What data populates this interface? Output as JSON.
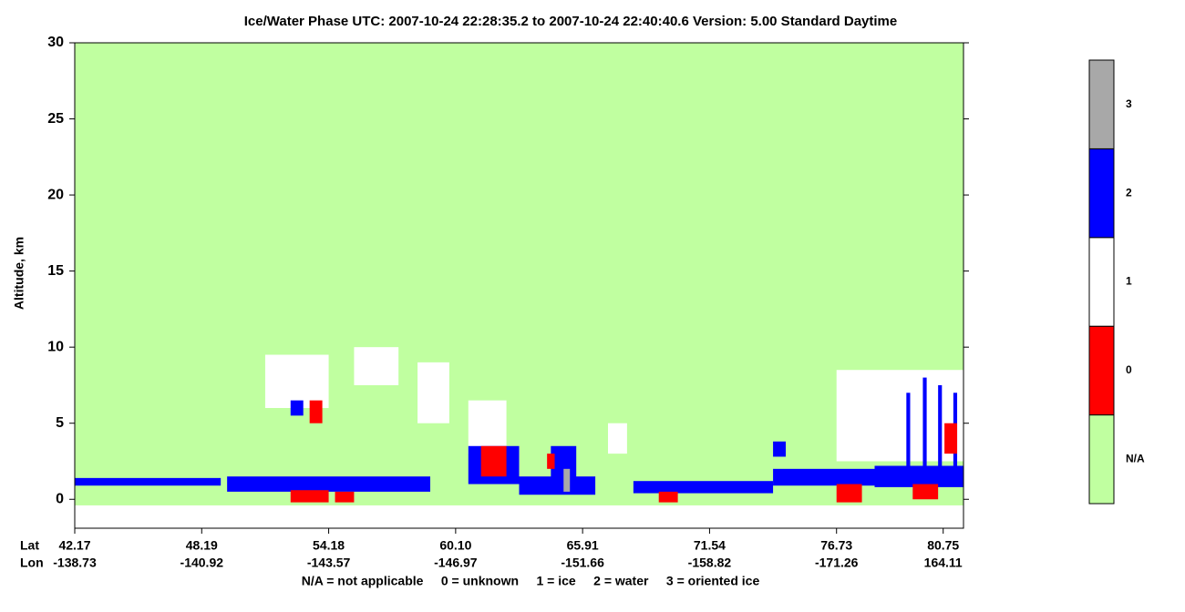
{
  "chart_data": {
    "type": "curtain",
    "title": "Ice/Water Phase    UTC:  2007-10-24   22:28:35.2  to  2007-10-24   22:40:40.6    Version: 5.00  Standard Daytime",
    "y_label": "Altitude, km",
    "x_label_lat": "Lat",
    "x_label_lon": "Lon",
    "legend_text": "N/A = not applicable     0 = unknown     1 = ice     2 = water     3 = oriented ice",
    "ylim": [
      -1.9,
      30
    ],
    "yticks": [
      0,
      5,
      10,
      15,
      20,
      25,
      30
    ],
    "xlim": [
      0,
      7
    ],
    "xticks": [
      {
        "value": 0,
        "lat": "42.17",
        "lon": "-138.73"
      },
      {
        "value": 1,
        "lat": "48.19",
        "lon": "-140.92"
      },
      {
        "value": 2,
        "lat": "54.18",
        "lon": "-143.57"
      },
      {
        "value": 3,
        "lat": "60.10",
        "lon": "-146.97"
      },
      {
        "value": 4,
        "lat": "65.91",
        "lon": "-151.66"
      },
      {
        "value": 5,
        "lat": "71.54",
        "lon": "-158.82"
      },
      {
        "value": 6,
        "lat": "76.73",
        "lon": "-171.26"
      },
      {
        "value": 6.84,
        "lat": "80.75",
        "lon": "164.11"
      }
    ],
    "field_alt": [
      -0.4,
      30
    ],
    "colorbar": {
      "labels": [
        "N/A",
        "0",
        "1",
        "2",
        "3"
      ],
      "colors": [
        "#c0ffa0",
        "#ff0000",
        "#ffffff",
        "#0000ff",
        "#a8a8a8"
      ]
    },
    "features": [
      {
        "class": 3,
        "x": [
          0.0,
          1.15
        ],
        "alt": [
          0.9,
          1.4
        ]
      },
      {
        "class": 3,
        "x": [
          1.2,
          2.8
        ],
        "alt": [
          0.5,
          1.5
        ]
      },
      {
        "class": 1,
        "x": [
          1.7,
          2.0
        ],
        "alt": [
          -0.2,
          0.6
        ]
      },
      {
        "class": 1,
        "x": [
          2.05,
          2.2
        ],
        "alt": [
          -0.2,
          0.5
        ]
      },
      {
        "class": 2,
        "x": [
          1.5,
          2.0
        ],
        "alt": [
          6.0,
          9.5
        ]
      },
      {
        "class": 2,
        "x": [
          2.2,
          2.55
        ],
        "alt": [
          7.5,
          10.0
        ]
      },
      {
        "class": 2,
        "x": [
          2.7,
          2.95
        ],
        "alt": [
          5.0,
          9.0
        ]
      },
      {
        "class": 3,
        "x": [
          1.7,
          1.8
        ],
        "alt": [
          5.5,
          6.5
        ]
      },
      {
        "class": 1,
        "x": [
          1.85,
          1.95
        ],
        "alt": [
          5.0,
          6.5
        ]
      },
      {
        "class": 2,
        "x": [
          3.1,
          3.4
        ],
        "alt": [
          3.0,
          6.5
        ]
      },
      {
        "class": 3,
        "x": [
          3.1,
          3.5
        ],
        "alt": [
          1.0,
          3.5
        ]
      },
      {
        "class": 1,
        "x": [
          3.2,
          3.4
        ],
        "alt": [
          1.5,
          3.5
        ]
      },
      {
        "class": 3,
        "x": [
          3.5,
          4.1
        ],
        "alt": [
          0.3,
          1.5
        ]
      },
      {
        "class": 3,
        "x": [
          3.75,
          3.95
        ],
        "alt": [
          1.0,
          3.5
        ]
      },
      {
        "class": 1,
        "x": [
          3.72,
          3.78
        ],
        "alt": [
          2.0,
          3.0
        ]
      },
      {
        "class": 4,
        "x": [
          3.85,
          3.9
        ],
        "alt": [
          0.5,
          2.0
        ]
      },
      {
        "class": 2,
        "x": [
          4.2,
          4.35
        ],
        "alt": [
          3.0,
          5.0
        ]
      },
      {
        "class": 3,
        "x": [
          4.4,
          5.5
        ],
        "alt": [
          0.4,
          1.2
        ]
      },
      {
        "class": 3,
        "x": [
          5.5,
          6.3
        ],
        "alt": [
          0.9,
          2.0
        ]
      },
      {
        "class": 3,
        "x": [
          6.3,
          7.0
        ],
        "alt": [
          0.8,
          2.2
        ]
      },
      {
        "class": 1,
        "x": [
          4.6,
          4.75
        ],
        "alt": [
          -0.2,
          0.5
        ]
      },
      {
        "class": 1,
        "x": [
          6.0,
          6.2
        ],
        "alt": [
          -0.2,
          1.0
        ]
      },
      {
        "class": 2,
        "x": [
          6.0,
          7.0
        ],
        "alt": [
          2.5,
          8.5
        ]
      },
      {
        "class": 3,
        "x": [
          6.55,
          6.58
        ],
        "alt": [
          1.0,
          7.0
        ]
      },
      {
        "class": 3,
        "x": [
          6.68,
          6.71
        ],
        "alt": [
          1.0,
          8.0
        ]
      },
      {
        "class": 3,
        "x": [
          6.8,
          6.83
        ],
        "alt": [
          1.0,
          7.5
        ]
      },
      {
        "class": 3,
        "x": [
          6.92,
          6.95
        ],
        "alt": [
          1.0,
          7.0
        ]
      },
      {
        "class": 1,
        "x": [
          6.6,
          6.8
        ],
        "alt": [
          0.0,
          1.0
        ]
      },
      {
        "class": 3,
        "x": [
          5.5,
          5.6
        ],
        "alt": [
          2.8,
          3.8
        ]
      },
      {
        "class": 1,
        "x": [
          6.85,
          6.95
        ],
        "alt": [
          3.0,
          5.0
        ]
      }
    ]
  }
}
